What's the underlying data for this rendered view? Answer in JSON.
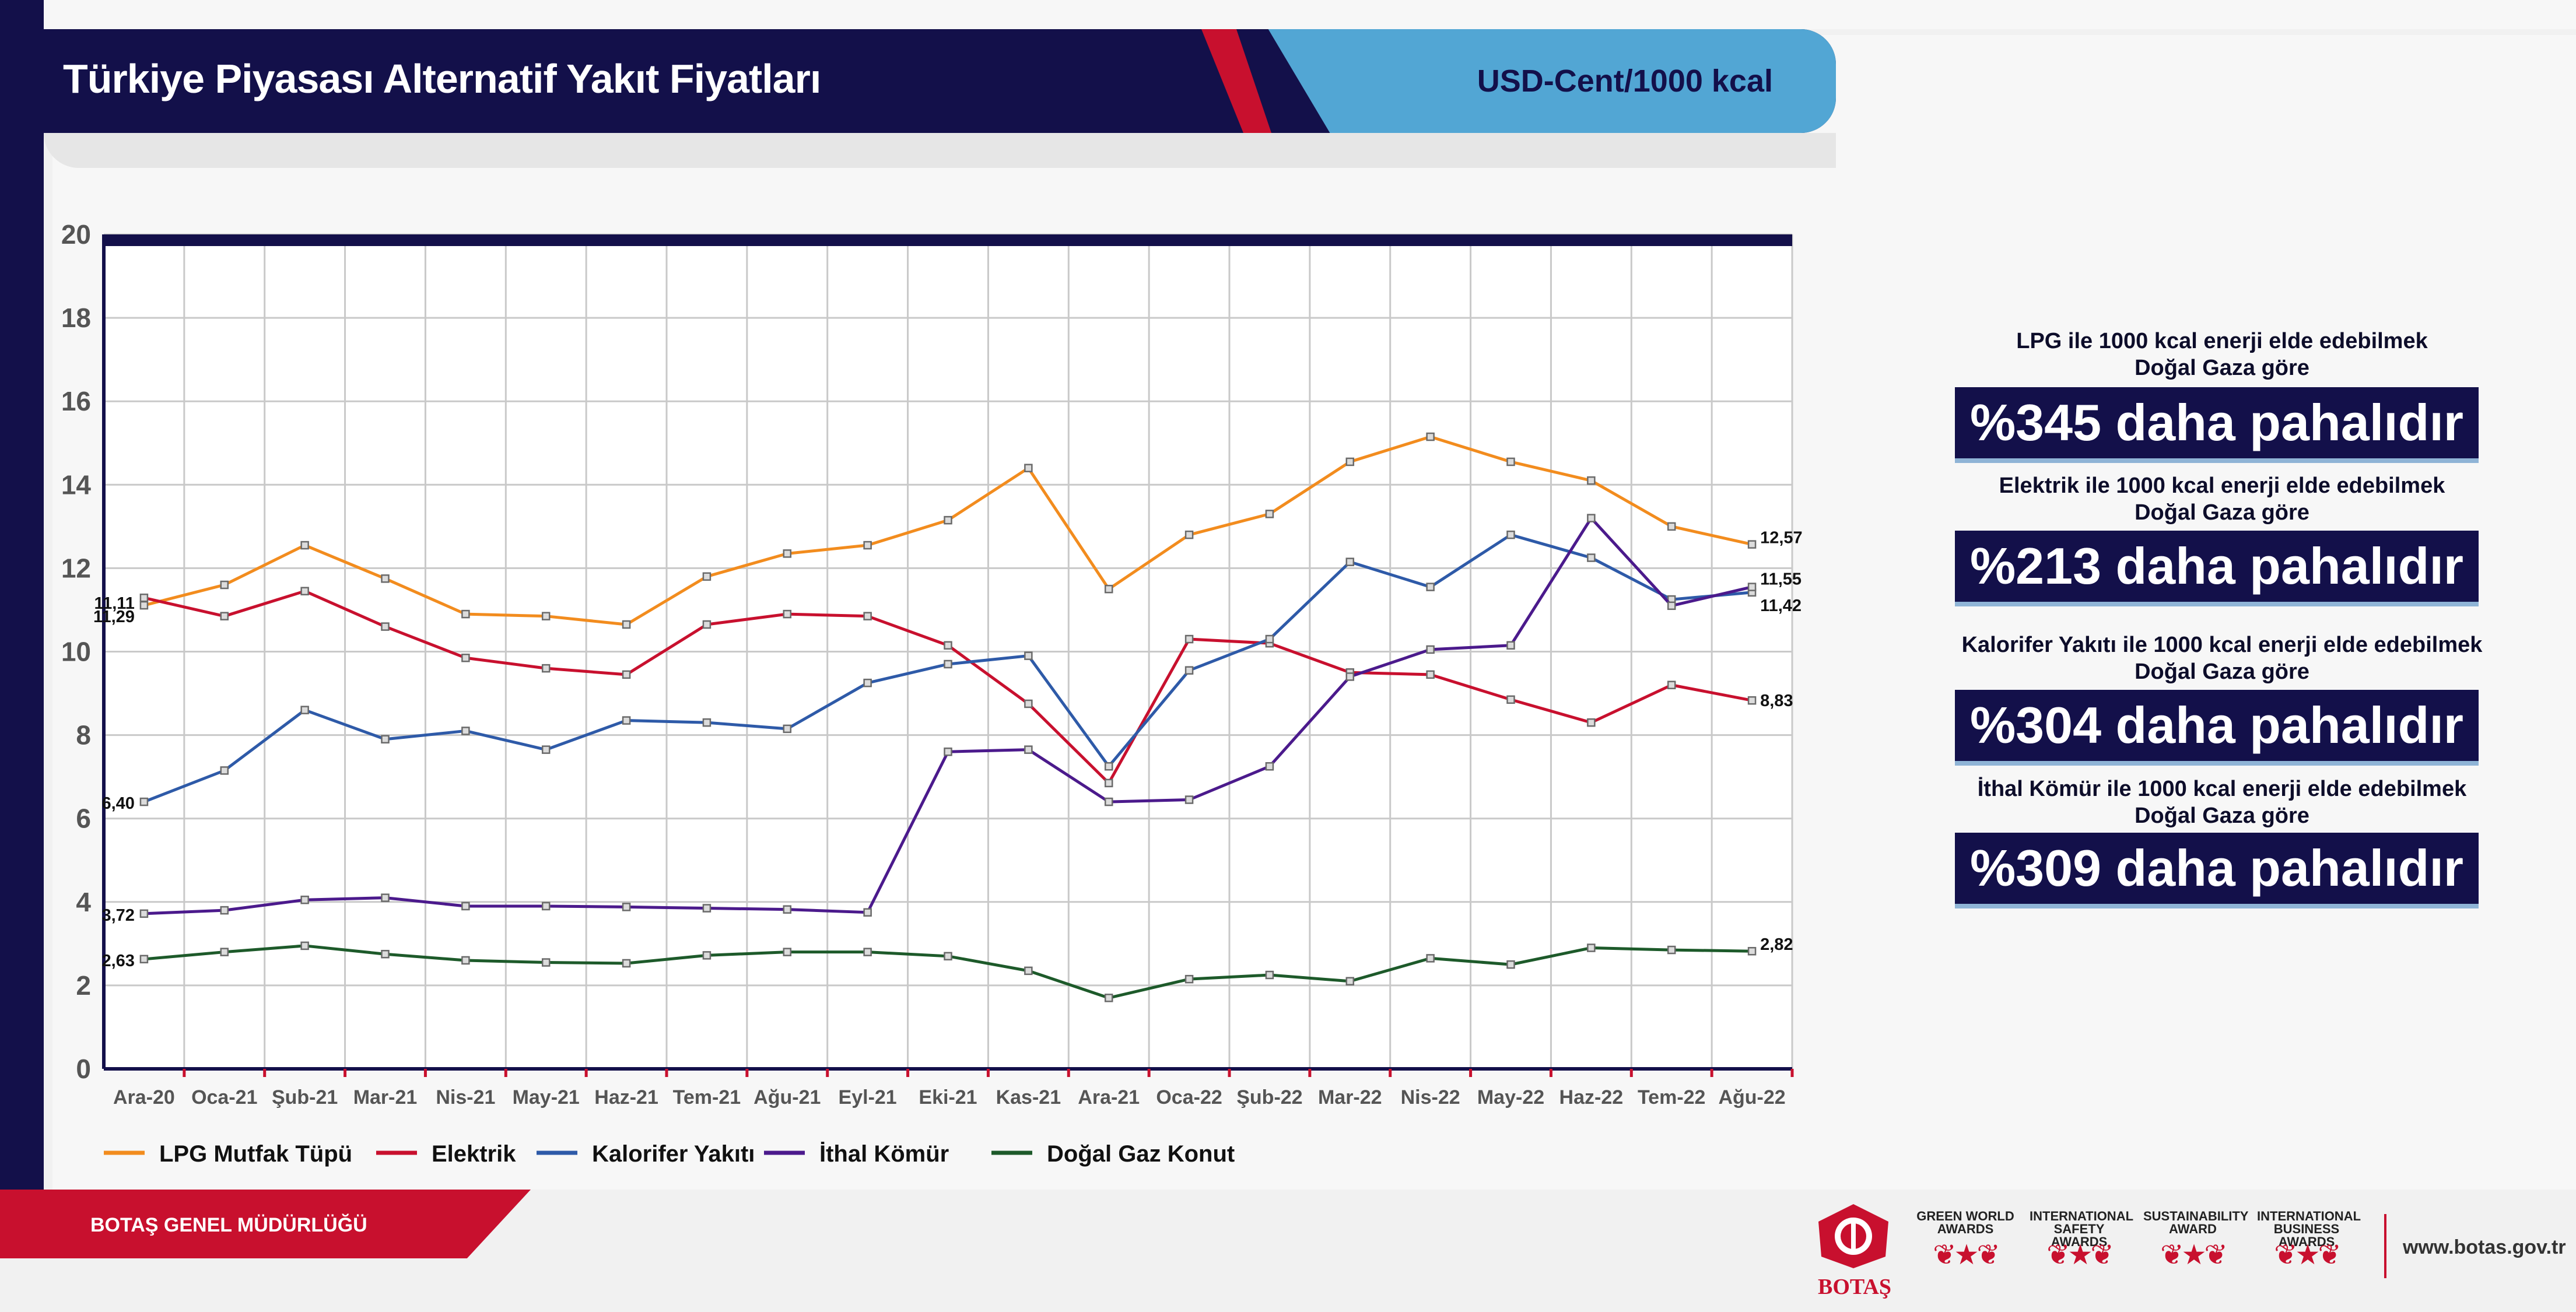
{
  "header": {
    "title": "Türkiye Piyasası Alternatif Yakıt Fiyatları",
    "unit": "USD-Cent/1000 kcal"
  },
  "chart_data": {
    "type": "line",
    "title": "",
    "xlabel": "",
    "ylabel": "",
    "ylim": [
      0,
      20
    ],
    "yticks": [
      0,
      2,
      4,
      6,
      8,
      10,
      12,
      14,
      16,
      18,
      20
    ],
    "grid": true,
    "legend_position": "bottom",
    "categories": [
      "Ara-20",
      "Oca-21",
      "Şub-21",
      "Mar-21",
      "Nis-21",
      "May-21",
      "Haz-21",
      "Tem-21",
      "Ağu-21",
      "Eyl-21",
      "Eki-21",
      "Kas-21",
      "Ara-21",
      "Oca-22",
      "Şub-22",
      "Mar-22",
      "Nis-22",
      "May-22",
      "Haz-22",
      "Tem-22",
      "Ağu-22"
    ],
    "series": [
      {
        "name": "LPG Mutfak Tüpü",
        "color": "#f28c1e",
        "values": [
          11.11,
          11.6,
          12.55,
          11.75,
          10.9,
          10.85,
          10.65,
          11.8,
          12.35,
          12.55,
          13.15,
          14.4,
          11.5,
          12.8,
          13.3,
          14.55,
          15.15,
          14.55,
          14.1,
          13.0,
          12.57
        ],
        "first_label": "11,11",
        "last_label": "12,57"
      },
      {
        "name": "Elektrik",
        "color": "#c8102e",
        "values": [
          11.29,
          10.85,
          11.45,
          10.6,
          9.85,
          9.6,
          9.45,
          10.65,
          10.9,
          10.85,
          10.15,
          8.75,
          6.85,
          10.3,
          10.2,
          9.5,
          9.45,
          8.85,
          8.3,
          9.2,
          8.83
        ],
        "first_label": "11,29",
        "last_label": "8,83"
      },
      {
        "name": "Kalorifer Yakıtı",
        "color": "#2e5aa8",
        "values": [
          6.4,
          7.15,
          8.6,
          7.9,
          8.1,
          7.65,
          8.35,
          8.3,
          8.15,
          9.25,
          9.7,
          9.9,
          7.25,
          9.55,
          10.3,
          12.15,
          11.55,
          12.8,
          12.25,
          11.25,
          11.42
        ],
        "first_label": "6,40",
        "last_label": "11,42"
      },
      {
        "name": "İthal Kömür",
        "color": "#4b1a8c",
        "values": [
          3.72,
          3.8,
          4.05,
          4.1,
          3.9,
          3.9,
          3.88,
          3.85,
          3.82,
          3.75,
          7.6,
          7.65,
          6.4,
          6.45,
          7.25,
          9.4,
          10.05,
          10.15,
          13.2,
          11.1,
          11.55
        ],
        "first_label": "3,72",
        "last_label": "11,55"
      },
      {
        "name": "Doğal Gaz Konut",
        "color": "#1d5a2a",
        "values": [
          2.63,
          2.8,
          2.95,
          2.75,
          2.6,
          2.55,
          2.53,
          2.72,
          2.8,
          2.8,
          2.7,
          2.35,
          1.7,
          2.15,
          2.25,
          2.1,
          2.65,
          2.5,
          2.9,
          2.85,
          2.82
        ],
        "first_label": "2,63",
        "last_label": "2,82"
      }
    ]
  },
  "notes": [
    {
      "line1": "LPG ile 1000 kcal enerji elde edebilmek",
      "line2": "Doğal Gaza göre",
      "value": "%345 daha pahalıdır"
    },
    {
      "line1": "Elektrik ile 1000 kcal enerji elde edebilmek",
      "line2": "Doğal Gaza göre",
      "value": "%213 daha pahalıdır"
    },
    {
      "line1": "Kalorifer Yakıtı ile 1000 kcal enerji elde edebilmek",
      "line2": "Doğal Gaza göre",
      "value": "%304 daha pahalıdır"
    },
    {
      "line1": "İthal Kömür ile 1000 kcal enerji elde edebilmek",
      "line2": "Doğal Gaza göre",
      "value": "%309 daha pahalıdır"
    }
  ],
  "footer": {
    "org": "BOTAŞ GENEL MÜDÜRLÜĞÜ",
    "logo_text": "BOTAŞ",
    "website": "www.botas.gov.tr",
    "awards": [
      "GREEN WORLD AWARDS",
      "INTERNATIONAL SAFETY AWARDS",
      "SUSTAINABILITY AWARD",
      "INTERNATIONAL BUSINESS AWARDS"
    ]
  }
}
